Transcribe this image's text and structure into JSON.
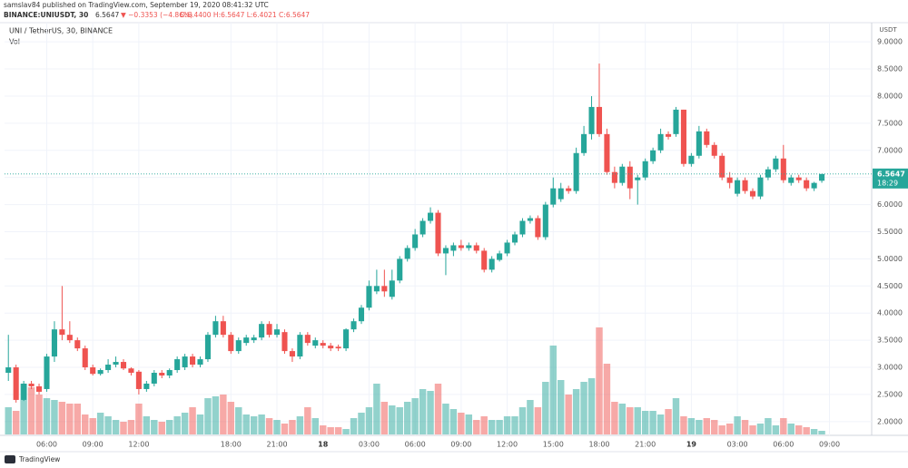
{
  "header": {
    "published": "samslav84 published on TradingView.com, September 19, 2020 08:41:32 UTC",
    "symbol": "BINANCE:UNIUSDT, 30",
    "last": "6.5647",
    "change": "▼ −0.3353 (−4.86%)",
    "ohlc": "O:6.4400 H:6.5647 L:6.4021 C:6.5647"
  },
  "footer": {
    "brand": "TradingView"
  },
  "chart_data": {
    "type": "candlestick",
    "title": "UNI / TetherUS, 30, BINANCE",
    "volume_label": "Vol",
    "currency": "USDT",
    "up_color": "#26a69a",
    "down_color": "#ef5350",
    "grid": true,
    "xlim": [
      -0.5,
      112.5
    ],
    "xticks": [
      {
        "value": 5,
        "label": "06:00"
      },
      {
        "value": 11,
        "label": "09:00"
      },
      {
        "value": 17,
        "label": "12:00"
      },
      {
        "value": 29,
        "label": "18:00"
      },
      {
        "value": 35,
        "label": "21:00"
      },
      {
        "value": 41,
        "label": "18"
      },
      {
        "value": 47,
        "label": "03:00"
      },
      {
        "value": 53,
        "label": "06:00"
      },
      {
        "value": 59,
        "label": "09:00"
      },
      {
        "value": 65,
        "label": "12:00"
      },
      {
        "value": 71,
        "label": "15:00"
      },
      {
        "value": 77,
        "label": "18:00"
      },
      {
        "value": 83,
        "label": "21:00"
      },
      {
        "value": 89,
        "label": "19"
      },
      {
        "value": 95,
        "label": "03:00"
      },
      {
        "value": 101,
        "label": "06:00"
      },
      {
        "value": 107,
        "label": "09:00"
      }
    ],
    "ylim": [
      1.78,
      9.27
    ],
    "yticks": [
      {
        "value": 2,
        "label": "2.0000"
      },
      {
        "value": 2.5,
        "label": "2.5000"
      },
      {
        "value": 3,
        "label": "3.0000"
      },
      {
        "value": 3.5,
        "label": "3.5000"
      },
      {
        "value": 4,
        "label": "4.0000"
      },
      {
        "value": 4.5,
        "label": "4.5000"
      },
      {
        "value": 5,
        "label": "5.0000"
      },
      {
        "value": 5.5,
        "label": "5.5000"
      },
      {
        "value": 6,
        "label": "6.0000"
      },
      {
        "value": 6.5,
        "label": "6.5000"
      },
      {
        "value": 7,
        "label": "7.0000"
      },
      {
        "value": 7.5,
        "label": "7.5000"
      },
      {
        "value": 8,
        "label": "8.0000"
      },
      {
        "value": 8.5,
        "label": "8.5000"
      },
      {
        "value": 9,
        "label": "9.0000"
      }
    ],
    "last_price": {
      "value": 6.5647,
      "label": "6.5647"
    },
    "countdown": "18:29",
    "open": [
      2.9,
      3.0,
      2.4,
      2.7,
      2.65,
      2.6,
      3.2,
      3.7,
      3.6,
      3.5,
      3.35,
      3.0,
      2.88,
      2.95,
      3.05,
      3.1,
      2.98,
      2.92,
      2.6,
      2.7,
      2.9,
      2.85,
      2.95,
      3.0,
      3.2,
      3.05,
      3.15,
      3.6,
      3.85,
      3.6,
      3.3,
      3.45,
      3.5,
      3.55,
      3.8,
      3.6,
      3.65,
      3.3,
      3.2,
      3.6,
      3.4,
      3.45,
      3.4,
      3.38,
      3.35,
      3.7,
      3.85,
      4.1,
      4.4,
      4.5,
      4.3,
      4.6,
      5.0,
      5.2,
      5.45,
      5.7,
      5.85,
      5.1,
      5.15,
      5.25,
      5.2,
      5.25,
      5.15,
      4.8,
      4.98,
      5.1,
      5.3,
      5.45,
      5.7,
      5.75,
      5.4,
      6.0,
      6.1,
      6.3,
      6.25,
      6.95,
      7.3,
      7.8,
      7.3,
      6.6,
      6.4,
      6.7,
      6.45,
      6.5,
      6.8,
      7.0,
      7.3,
      7.3,
      7.75,
      6.75,
      6.9,
      7.35,
      7.1,
      6.9,
      6.5,
      6.2,
      6.45,
      6.25,
      6.15,
      6.5,
      6.65,
      6.85,
      6.4,
      6.5,
      6.45,
      6.3,
      6.44
    ],
    "high": [
      3.6,
      3.05,
      2.75,
      2.75,
      2.7,
      3.25,
      3.85,
      4.5,
      3.85,
      3.55,
      3.4,
      3.05,
      2.98,
      3.15,
      3.2,
      3.15,
      3.0,
      2.95,
      2.75,
      2.95,
      2.95,
      2.98,
      3.2,
      3.25,
      3.25,
      3.2,
      3.65,
      3.95,
      3.95,
      3.65,
      3.55,
      3.6,
      3.6,
      3.85,
      3.85,
      3.8,
      3.7,
      3.35,
      3.65,
      3.65,
      3.55,
      3.5,
      3.45,
      3.42,
      3.72,
      3.9,
      4.15,
      4.6,
      4.8,
      4.8,
      4.8,
      5.05,
      5.25,
      5.55,
      5.75,
      5.95,
      5.9,
      5.25,
      5.3,
      5.35,
      5.3,
      5.3,
      5.2,
      5.05,
      5.15,
      5.35,
      5.5,
      5.75,
      5.8,
      5.8,
      6.05,
      6.5,
      6.4,
      6.35,
      7.05,
      7.45,
      8.0,
      8.6,
      7.4,
      6.7,
      6.75,
      6.8,
      6.55,
      6.85,
      7.05,
      7.4,
      7.35,
      7.8,
      7.75,
      6.95,
      7.45,
      7.4,
      7.15,
      6.95,
      6.6,
      6.5,
      6.5,
      6.3,
      6.55,
      6.7,
      6.9,
      7.1,
      6.55,
      6.55,
      6.5,
      6.42,
      6.5647
    ],
    "low": [
      2.75,
      2.35,
      2.38,
      2.6,
      2.5,
      2.55,
      3.1,
      3.5,
      3.45,
      3.3,
      2.95,
      2.85,
      2.85,
      2.9,
      3.0,
      2.95,
      2.85,
      2.5,
      2.55,
      2.65,
      2.8,
      2.8,
      2.9,
      2.95,
      3.0,
      3.0,
      3.1,
      3.55,
      3.55,
      3.25,
      3.25,
      3.4,
      3.45,
      3.5,
      3.55,
      3.55,
      3.25,
      3.1,
      3.15,
      3.4,
      3.35,
      3.35,
      3.3,
      3.3,
      3.3,
      3.65,
      3.8,
      4.05,
      4.35,
      4.3,
      4.25,
      4.55,
      4.95,
      5.15,
      5.4,
      5.65,
      5.05,
      4.7,
      5.05,
      5.15,
      5.15,
      5.1,
      4.75,
      4.75,
      4.95,
      5.05,
      5.25,
      5.4,
      5.65,
      5.35,
      5.35,
      5.95,
      6.05,
      6.2,
      6.2,
      6.9,
      7.2,
      7.25,
      6.55,
      6.3,
      6.35,
      6.1,
      6.0,
      6.45,
      6.75,
      6.95,
      7.2,
      7.25,
      6.7,
      6.7,
      6.85,
      7.05,
      6.85,
      6.45,
      6.3,
      6.15,
      6.2,
      6.1,
      6.1,
      6.45,
      6.6,
      6.4,
      6.35,
      6.4,
      6.25,
      6.25,
      6.4021
    ],
    "close": [
      3.0,
      2.4,
      2.7,
      2.65,
      2.55,
      3.2,
      3.7,
      3.6,
      3.5,
      3.35,
      3.0,
      2.88,
      2.95,
      3.05,
      3.1,
      2.98,
      2.9,
      2.6,
      2.7,
      2.9,
      2.85,
      2.95,
      3.15,
      3.2,
      3.05,
      3.15,
      3.6,
      3.85,
      3.6,
      3.3,
      3.5,
      3.55,
      3.55,
      3.8,
      3.6,
      3.7,
      3.3,
      3.2,
      3.6,
      3.45,
      3.5,
      3.4,
      3.35,
      3.35,
      3.7,
      3.85,
      4.1,
      4.5,
      4.5,
      4.4,
      4.6,
      5.0,
      5.2,
      5.45,
      5.7,
      5.85,
      5.1,
      5.2,
      5.25,
      5.2,
      5.25,
      5.15,
      4.8,
      5.0,
      5.1,
      5.3,
      5.45,
      5.7,
      5.75,
      5.4,
      6.0,
      6.3,
      6.3,
      6.25,
      6.95,
      7.3,
      7.8,
      7.3,
      6.6,
      6.4,
      6.7,
      6.3,
      6.5,
      6.8,
      7.0,
      7.3,
      7.25,
      7.75,
      6.75,
      6.9,
      7.35,
      7.1,
      6.9,
      6.5,
      6.4,
      6.45,
      6.25,
      6.15,
      6.5,
      6.65,
      6.85,
      6.45,
      6.5,
      6.45,
      6.3,
      6.4,
      6.5647
    ],
    "volume": [
      30,
      26,
      56,
      52,
      44,
      40,
      38,
      36,
      34,
      34,
      22,
      18,
      24,
      20,
      16,
      14,
      16,
      34,
      20,
      16,
      14,
      16,
      20,
      24,
      30,
      22,
      40,
      42,
      44,
      36,
      30,
      22,
      20,
      22,
      18,
      16,
      12,
      16,
      20,
      30,
      18,
      10,
      8,
      8,
      6,
      18,
      24,
      30,
      56,
      36,
      32,
      30,
      36,
      40,
      50,
      48,
      56,
      34,
      28,
      24,
      22,
      16,
      20,
      16,
      16,
      20,
      20,
      30,
      38,
      30,
      58,
      98,
      60,
      44,
      50,
      58,
      62,
      118,
      78,
      36,
      34,
      30,
      30,
      26,
      26,
      22,
      28,
      40,
      20,
      18,
      16,
      18,
      16,
      10,
      12,
      20,
      16,
      10,
      12,
      18,
      10,
      18,
      12,
      10,
      8,
      6,
      4
    ]
  }
}
